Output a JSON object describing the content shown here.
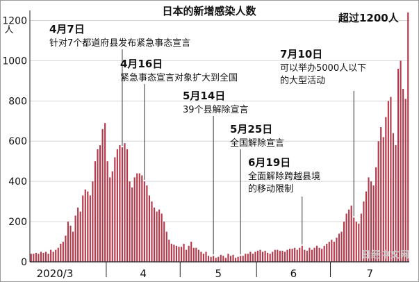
{
  "chart_data": {
    "type": "bar",
    "title": "日本的新增感染人数",
    "ylabel": "人",
    "ylim": [
      0,
      1250
    ],
    "yticks": [
      0,
      200,
      400,
      600,
      800,
      1000,
      1200
    ],
    "month_labels": [
      "2020/3",
      "4",
      "5",
      "6",
      "7"
    ],
    "bar_color": "#b5384a",
    "series": [
      {
        "values": [
          40,
          40,
          45,
          40,
          50,
          45,
          50,
          40,
          60,
          50,
          60,
          70,
          90,
          100,
          130,
          200,
          180,
          150,
          230,
          270,
          250,
          330,
          360,
          350,
          330,
          400,
          500,
          560,
          580,
          660,
          690,
          500,
          420,
          450,
          520,
          560,
          580,
          570,
          590,
          560,
          400,
          370,
          420,
          440,
          440,
          430,
          400,
          380,
          330,
          300,
          270,
          250,
          260,
          240,
          200,
          150,
          110,
          90,
          85,
          80,
          75,
          75,
          90,
          60,
          80,
          100,
          70,
          70,
          60,
          50,
          40,
          50,
          30,
          25,
          30,
          20,
          25,
          35,
          30,
          20,
          40,
          30,
          35,
          20,
          25,
          30,
          30,
          40,
          40,
          50,
          40,
          50,
          55,
          60,
          50,
          55,
          45,
          40,
          50,
          60,
          60,
          55,
          55,
          50,
          60,
          65,
          65,
          70,
          60,
          70,
          80,
          60,
          55,
          70,
          60,
          70,
          80,
          70,
          65,
          80,
          90,
          100,
          110,
          100,
          120,
          140,
          150,
          200,
          240,
          260,
          280,
          220,
          200,
          190,
          240,
          300,
          350,
          420,
          400,
          380,
          470,
          600,
          670,
          620,
          720,
          800,
          820,
          640,
          580,
          960,
          1000,
          860,
          810,
          1240
        ]
      }
    ],
    "x_labels": [
      "2020/3",
      "4",
      "5",
      "6",
      "7"
    ],
    "annotations": [
      {
        "date": "4月7日",
        "text_lines": [
          "针对7个都道府县发布紧急事态宣言"
        ],
        "bar_index": 37
      },
      {
        "date": "4月16日",
        "text_lines": [
          "紧急事态宣言对象扩大到全国"
        ],
        "bar_index": 46
      },
      {
        "date": "5月14日",
        "text_lines": [
          "39个县解除宣言"
        ],
        "bar_index": 74
      },
      {
        "date": "5月25日",
        "text_lines": [
          "全国解除宣言"
        ],
        "bar_index": 85
      },
      {
        "date": "6月19日",
        "text_lines": [
          "全面解除跨越县境",
          "的移动限制"
        ],
        "bar_index": 110
      },
      {
        "date": "7月10日",
        "text_lines": [
          "可以举办5000人以下",
          "的大型活动"
        ],
        "bar_index": 131
      },
      {
        "date": "",
        "text_lines": [
          "超过1200人"
        ],
        "bar_index": 152
      }
    ]
  },
  "watermark": "日经中文网"
}
